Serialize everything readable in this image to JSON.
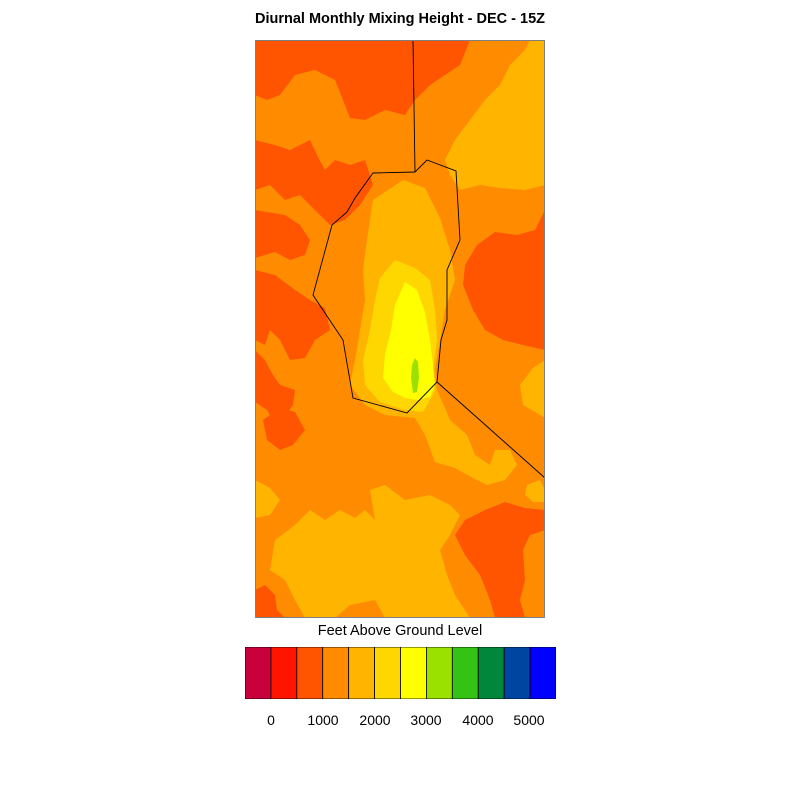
{
  "title": "Diurnal Monthly Mixing Height - DEC - 15Z",
  "legend": {
    "title": "Feet Above Ground Level",
    "colors": [
      "#c8003c",
      "#ff1400",
      "#ff5500",
      "#ff8c00",
      "#ffb400",
      "#ffd700",
      "#ffff00",
      "#9be100",
      "#32c314",
      "#00873c",
      "#0046a0",
      "#0000ff"
    ],
    "tick_labels": [
      "0",
      "1000",
      "2000",
      "3000",
      "4000",
      "5000"
    ]
  }
}
